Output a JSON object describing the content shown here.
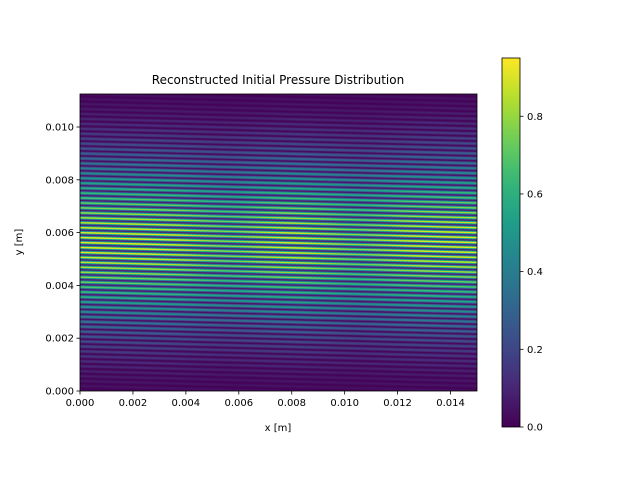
{
  "chart_data": {
    "type": "heatmap",
    "title": "Reconstructed Initial Pressure Distribution",
    "xlabel": "x [m]",
    "ylabel": "y [m]",
    "xlim": [
      0,
      0.015
    ],
    "ylim": [
      0,
      0.01125
    ],
    "x_ticks": [
      0,
      0.002,
      0.004,
      0.006,
      0.008,
      0.01,
      0.012,
      0.014
    ],
    "x_tick_labels": [
      "0.000",
      "0.002",
      "0.004",
      "0.006",
      "0.008",
      "0.010",
      "0.012",
      "0.014"
    ],
    "y_ticks": [
      0,
      0.002,
      0.004,
      0.006,
      0.008,
      0.01
    ],
    "y_tick_labels": [
      "0.000",
      "0.002",
      "0.004",
      "0.006",
      "0.008",
      "0.010"
    ],
    "colormap": "viridis",
    "color_range": [
      0,
      0.95
    ],
    "colorbar_ticks": [
      0,
      0.2,
      0.4,
      0.6,
      0.8
    ],
    "colorbar_tick_labels": [
      "0.0",
      "0.2",
      "0.4",
      "0.6",
      "0.8"
    ],
    "pattern": {
      "stripe_count": 60,
      "stripe_orientation": "horizontal",
      "stripe_tilt_y_per_x": 0.0337,
      "peak_value": 0.92,
      "peak_y": 0.0056,
      "x_dips_at": [
        0.0055,
        0.0105
      ]
    },
    "grid": false,
    "legend": "colorbar-right"
  }
}
